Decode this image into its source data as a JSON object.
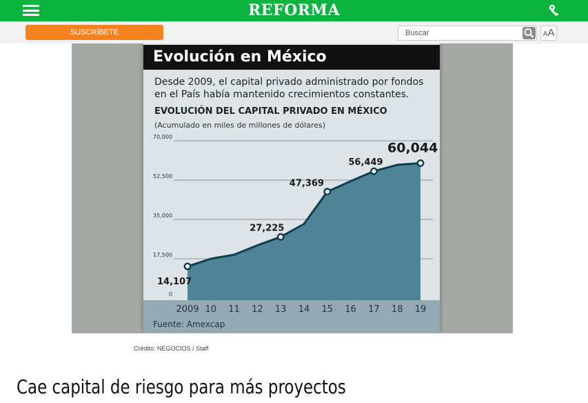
{
  "header": {
    "logo": "REFORMA",
    "icons": {
      "menu": "hamburger-menu-icon",
      "account": "key-icon"
    },
    "colors": {
      "bar": "#0bb43f"
    }
  },
  "subbar": {
    "subscribe_label": "SUSCRÍBETE",
    "search_placeholder": "Buscar",
    "font_size_label_small": "A",
    "font_size_label_big": "A",
    "colors": {
      "subscribe": "#f6821f"
    }
  },
  "infographic": {
    "heading": "Evolución en México",
    "description": "Desde 2009, el capital privado administrado por fondos en el País había mantenido crecimientos constantes.",
    "source": "Fuente: Amexcap"
  },
  "chart_data": {
    "type": "area",
    "title": "EVOLUCIÓN DEL CAPITAL PRIVADO EN MÉXICO",
    "subtitle": "(Acumulado en miles de millones de dólares)",
    "xlabel": "",
    "ylabel": "",
    "x": [
      "2009",
      "10",
      "11",
      "12",
      "13",
      "14",
      "15",
      "16",
      "17",
      "18",
      "19"
    ],
    "values": [
      14107,
      17500,
      19300,
      23500,
      27225,
      33000,
      47369,
      52000,
      56449,
      59300,
      60044
    ],
    "labeled_points": [
      {
        "index": 0,
        "label": "14,107"
      },
      {
        "index": 4,
        "label": "27,225"
      },
      {
        "index": 6,
        "label": "47,369"
      },
      {
        "index": 8,
        "label": "56,449"
      },
      {
        "index": 10,
        "label": "60,044"
      }
    ],
    "y_ticks": [
      {
        "value": 0,
        "label": "0"
      },
      {
        "value": 17500,
        "label": "17,500"
      },
      {
        "value": 35000,
        "label": "35,000"
      },
      {
        "value": 52500,
        "label": "52,500"
      },
      {
        "value": 70000,
        "label": "70,000"
      }
    ],
    "ylim": [
      0,
      70000
    ],
    "grid": true,
    "colors": {
      "fill": "#4f8396",
      "line": "#0f3c4f",
      "axis_band": "#93aab5"
    }
  },
  "credit": "Crédito: NEGOCIOS / Staff",
  "article": {
    "headline": "Cae capital de riesgo para más proyectos"
  }
}
